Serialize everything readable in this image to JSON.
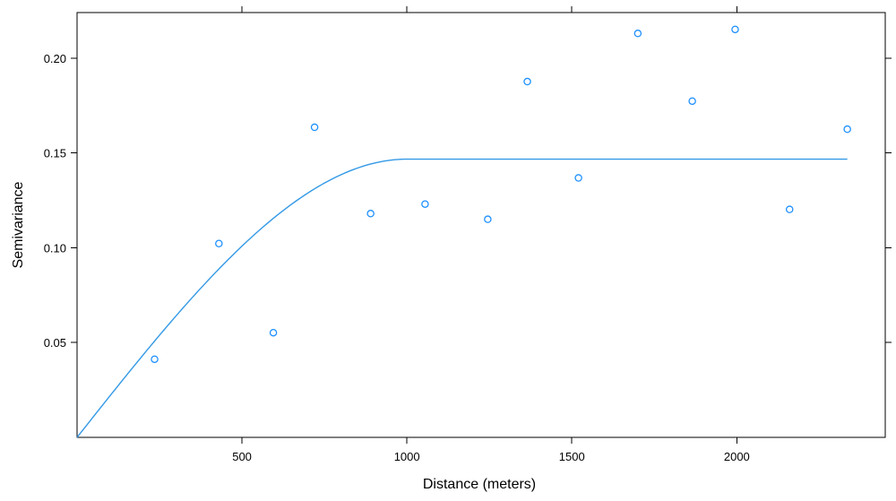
{
  "chart_data": {
    "type": "scatter",
    "xlabel": "Distance (meters)",
    "ylabel": "Semivariance",
    "xlim": [
      0,
      2450
    ],
    "ylim": [
      0,
      0.224
    ],
    "x_ticks": [
      500,
      1000,
      1500,
      2000
    ],
    "x_tick_labels": [
      "500",
      "1000",
      "1500",
      "2000"
    ],
    "y_ticks": [
      0.05,
      0.1,
      0.15,
      0.2
    ],
    "y_tick_labels": [
      "0.05",
      "0.10",
      "0.15",
      "0.20"
    ],
    "grid": false,
    "colors": {
      "points": "#1e90ff",
      "line": "#3399e6",
      "axis": "#000000"
    },
    "points": {
      "x": [
        235,
        430,
        595,
        720,
        890,
        1055,
        1245,
        1365,
        1520,
        1700,
        1865,
        1995,
        2160,
        2335
      ],
      "y": [
        0.0412,
        0.1022,
        0.0552,
        0.1635,
        0.118,
        0.123,
        0.115,
        0.1876,
        0.1368,
        0.213,
        0.1773,
        0.2151,
        0.1202,
        0.1625
      ]
    },
    "fitted_line": {
      "model": "spherical",
      "nugget": 0,
      "sill": 0.1467,
      "range": 1000,
      "x_max": 2335
    }
  }
}
